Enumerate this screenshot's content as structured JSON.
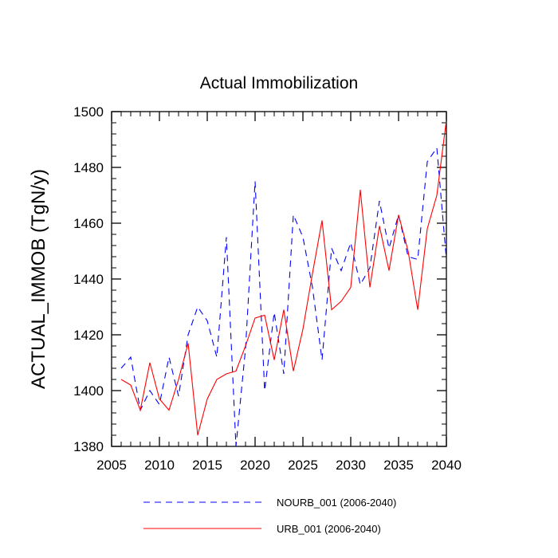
{
  "chart_data": {
    "type": "line",
    "title": "Actual Immobilization",
    "xlabel": "",
    "ylabel": "ACTUAL_IMMOB  (TgN/y)",
    "xlim": [
      2005,
      2040
    ],
    "ylim": [
      1380,
      1500
    ],
    "xticks": [
      2005,
      2010,
      2015,
      2020,
      2025,
      2030,
      2035,
      2040
    ],
    "yticks": [
      1380,
      1400,
      1420,
      1440,
      1460,
      1480,
      1500
    ],
    "x": [
      2006,
      2007,
      2008,
      2009,
      2010,
      2011,
      2012,
      2013,
      2014,
      2015,
      2016,
      2017,
      2018,
      2019,
      2020,
      2021,
      2022,
      2023,
      2024,
      2025,
      2026,
      2027,
      2028,
      2029,
      2030,
      2031,
      2032,
      2033,
      2034,
      2035,
      2036,
      2037,
      2038,
      2039,
      2040
    ],
    "series": [
      {
        "name": "NOURB_001 (2006-2040)",
        "color": "#0000ff",
        "dash": "dashed",
        "values": [
          1408,
          1412,
          1393,
          1400,
          1395,
          1412,
          1398,
          1420,
          1430,
          1425,
          1412,
          1455,
          1380,
          1415,
          1475,
          1400,
          1428,
          1406,
          1463,
          1455,
          1437,
          1411,
          1451,
          1443,
          1453,
          1438,
          1444,
          1468,
          1451,
          1463,
          1448,
          1447,
          1482,
          1487,
          1447
        ]
      },
      {
        "name": "URB_001 (2006-2040)",
        "color": "#ff0000",
        "dash": "solid",
        "values": [
          1404,
          1402,
          1393,
          1410,
          1397,
          1393,
          1404,
          1417,
          1384,
          1397,
          1404,
          1406,
          1407,
          1416,
          1426,
          1427,
          1411,
          1429,
          1407,
          1422,
          1442,
          1461,
          1429,
          1432,
          1437,
          1472,
          1437,
          1459,
          1443,
          1463,
          1450,
          1429,
          1458,
          1470,
          1497
        ]
      }
    ],
    "legend": "bottom"
  }
}
